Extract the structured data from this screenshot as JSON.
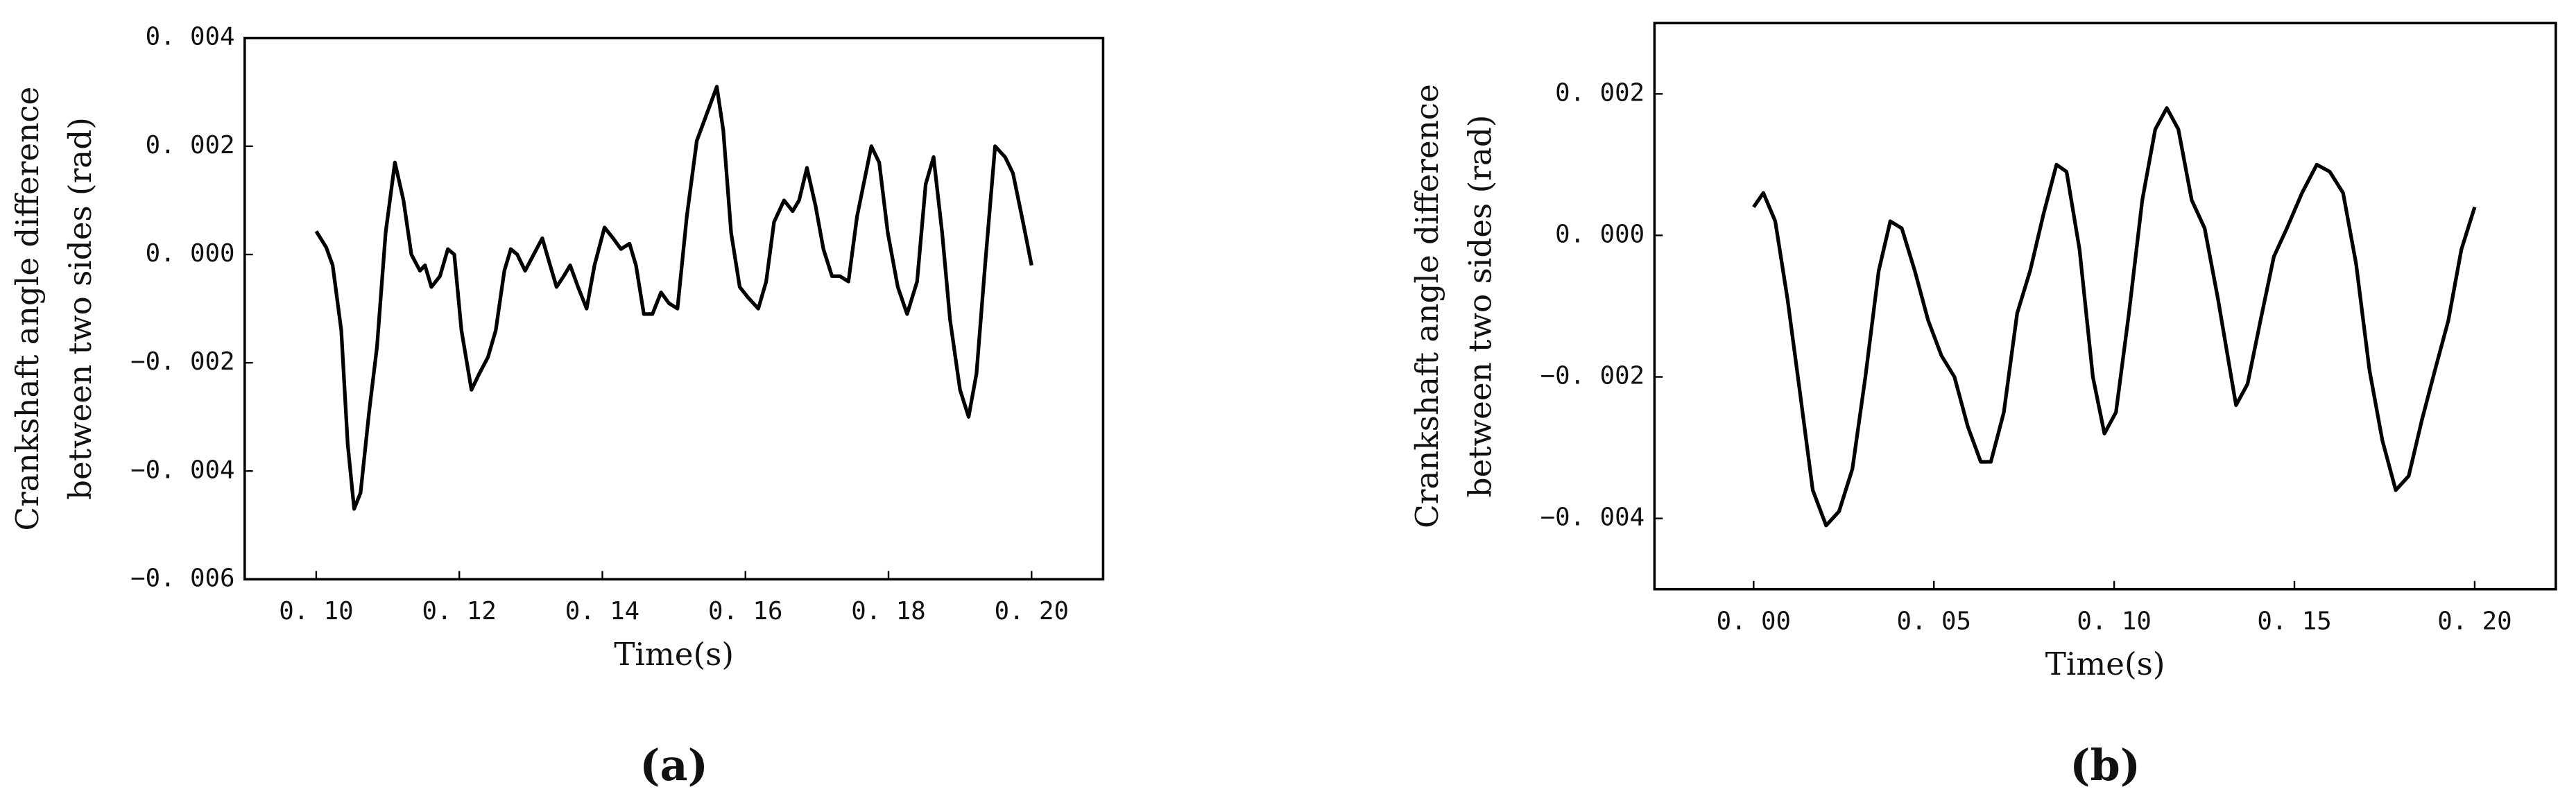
{
  "chart_data": [
    {
      "type": "line",
      "label": "(a)",
      "xlabel": "Time(s)",
      "ylabel": [
        "Crankshaft angle difference",
        "between two sides (rad)"
      ],
      "xlim": [
        0.09,
        0.21
      ],
      "ylim": [
        -0.006,
        0.004
      ],
      "xticks": [
        {
          "value": 0.1,
          "label": "0. 10"
        },
        {
          "value": 0.12,
          "label": "0. 12"
        },
        {
          "value": 0.14,
          "label": "0. 14"
        },
        {
          "value": 0.16,
          "label": "0. 16"
        },
        {
          "value": 0.18,
          "label": "0. 18"
        },
        {
          "value": 0.2,
          "label": "0. 20"
        }
      ],
      "yticks": [
        {
          "value": -0.006,
          "label": "−0. 006"
        },
        {
          "value": -0.004,
          "label": "−0. 004"
        },
        {
          "value": -0.002,
          "label": "−0. 002"
        },
        {
          "value": 0,
          "label": "0. 000"
        },
        {
          "value": 0.002,
          "label": "0. 002"
        },
        {
          "value": 0.004,
          "label": "0. 004"
        }
      ],
      "color": "#000000",
      "x": [
        0.1,
        0.1014,
        0.1023,
        0.1035,
        0.1044,
        0.1053,
        0.1062,
        0.1074,
        0.1085,
        0.1097,
        0.111,
        0.1122,
        0.1133,
        0.1145,
        0.1152,
        0.1161,
        0.1173,
        0.1184,
        0.1193,
        0.1203,
        0.1217,
        0.1228,
        0.124,
        0.1251,
        0.1263,
        0.1272,
        0.1281,
        0.1292,
        0.1304,
        0.1316,
        0.1327,
        0.1336,
        0.1346,
        0.1355,
        0.1366,
        0.1378,
        0.1389,
        0.1403,
        0.1415,
        0.1426,
        0.1438,
        0.1447,
        0.1458,
        0.147,
        0.1482,
        0.1493,
        0.1505,
        0.1518,
        0.1532,
        0.1546,
        0.156,
        0.1569,
        0.158,
        0.1592,
        0.1604,
        0.1618,
        0.1629,
        0.164,
        0.1654,
        0.1666,
        0.1675,
        0.1686,
        0.1698,
        0.1709,
        0.1721,
        0.1732,
        0.1744,
        0.1756,
        0.1776,
        0.1787,
        0.1799,
        0.1813,
        0.1826,
        0.184,
        0.1852,
        0.1863,
        0.1875,
        0.1886,
        0.19,
        0.1912,
        0.1923,
        0.1935,
        0.1949,
        0.1963,
        0.1974,
        0.1988,
        0.2
      ],
      "values": [
        0.00043,
        0.00013,
        -0.0002,
        -0.0014,
        -0.0035,
        -0.0047,
        -0.0044,
        -0.0029,
        -0.0017,
        0.0004,
        0.0017,
        0.001,
        0,
        -0.0003,
        -0.0002,
        -0.0006,
        -0.0004,
        0.0001,
        0,
        -0.0014,
        -0.0025,
        -0.0022,
        -0.0019,
        -0.0014,
        -0.0003,
        0.0001,
        0,
        -0.0003,
        0,
        0.0003,
        -0.0002,
        -0.0006,
        -0.0004,
        -0.0002,
        -0.0006,
        -0.001,
        -0.0002,
        0.0005,
        0.0003,
        0.0001,
        0.0002,
        -0.0002,
        -0.0011,
        -0.0011,
        -0.0007,
        -0.0009,
        -0.001,
        0.0007,
        0.0021,
        0.0026,
        0.0031,
        0.0023,
        0.0004,
        -0.0006,
        -0.0008,
        -0.001,
        -0.0005,
        0.0006,
        0.001,
        0.0008,
        0.001,
        0.0016,
        0.0009,
        0.0001,
        -0.0004,
        -0.0004,
        -0.0005,
        0.0007,
        0.002,
        0.0017,
        0.0004,
        -0.0006,
        -0.0011,
        -0.0005,
        0.0013,
        0.0018,
        0.0004,
        -0.0012,
        -0.0025,
        -0.003,
        -0.0022,
        -0.0002,
        0.002,
        0.0018,
        0.0015,
        0.0006,
        -0.0002
      ]
    },
    {
      "type": "line",
      "label": "(b)",
      "xlabel": "Time(s)",
      "ylabel": [
        "Crankshaft angle difference",
        "between two sides (rad)"
      ],
      "xlim": [
        -0.0275,
        0.2225
      ],
      "ylim": [
        -0.005,
        0.003
      ],
      "xticks": [
        {
          "value": 0,
          "label": "0. 00"
        },
        {
          "value": 0.05,
          "label": "0. 05"
        },
        {
          "value": 0.1,
          "label": "0. 10"
        },
        {
          "value": 0.15,
          "label": "0. 15"
        },
        {
          "value": 0.2,
          "label": "0. 20"
        }
      ],
      "yticks": [
        {
          "value": -0.004,
          "label": "−0. 004"
        },
        {
          "value": -0.002,
          "label": "−0. 002"
        },
        {
          "value": 0,
          "label": "0. 000"
        },
        {
          "value": 0.002,
          "label": "0. 002"
        }
      ],
      "color": "#000000",
      "x": [
        0,
        0.0027,
        0.006,
        0.0094,
        0.0128,
        0.0164,
        0.0201,
        0.0237,
        0.0274,
        0.031,
        0.0347,
        0.0379,
        0.0411,
        0.0447,
        0.0484,
        0.0521,
        0.0557,
        0.0594,
        0.063,
        0.0658,
        0.0694,
        0.0731,
        0.0767,
        0.0804,
        0.084,
        0.0868,
        0.0904,
        0.0941,
        0.0973,
        0.1005,
        0.1041,
        0.1078,
        0.1114,
        0.1146,
        0.1178,
        0.1215,
        0.1251,
        0.1288,
        0.1338,
        0.137,
        0.1406,
        0.1443,
        0.1479,
        0.1521,
        0.1562,
        0.1598,
        0.1635,
        0.1671,
        0.1708,
        0.1744,
        0.1781,
        0.1817,
        0.1854,
        0.189,
        0.1927,
        0.1963,
        0.2
      ],
      "values": [
        0.0004,
        0.0006,
        0.0002,
        -0.0009,
        -0.0022,
        -0.0036,
        -0.0041,
        -0.0039,
        -0.0033,
        -0.002,
        -0.0005,
        0.0002,
        0.0001,
        -0.0005,
        -0.0012,
        -0.0017,
        -0.002,
        -0.0027,
        -0.0032,
        -0.0032,
        -0.0025,
        -0.0011,
        -0.0005,
        0.0003,
        0.001,
        0.0009,
        -0.0002,
        -0.002,
        -0.0028,
        -0.0025,
        -0.0011,
        0.0005,
        0.0015,
        0.0018,
        0.0015,
        0.0005,
        0.0001,
        -0.0009,
        -0.0024,
        -0.0021,
        -0.0012,
        -0.0003,
        0.0001,
        0.0006,
        0.001,
        0.0009,
        0.0006,
        -0.0004,
        -0.0019,
        -0.0029,
        -0.0036,
        -0.0034,
        -0.0026,
        -0.0019,
        -0.0012,
        -0.0002,
        0.0004
      ]
    }
  ]
}
